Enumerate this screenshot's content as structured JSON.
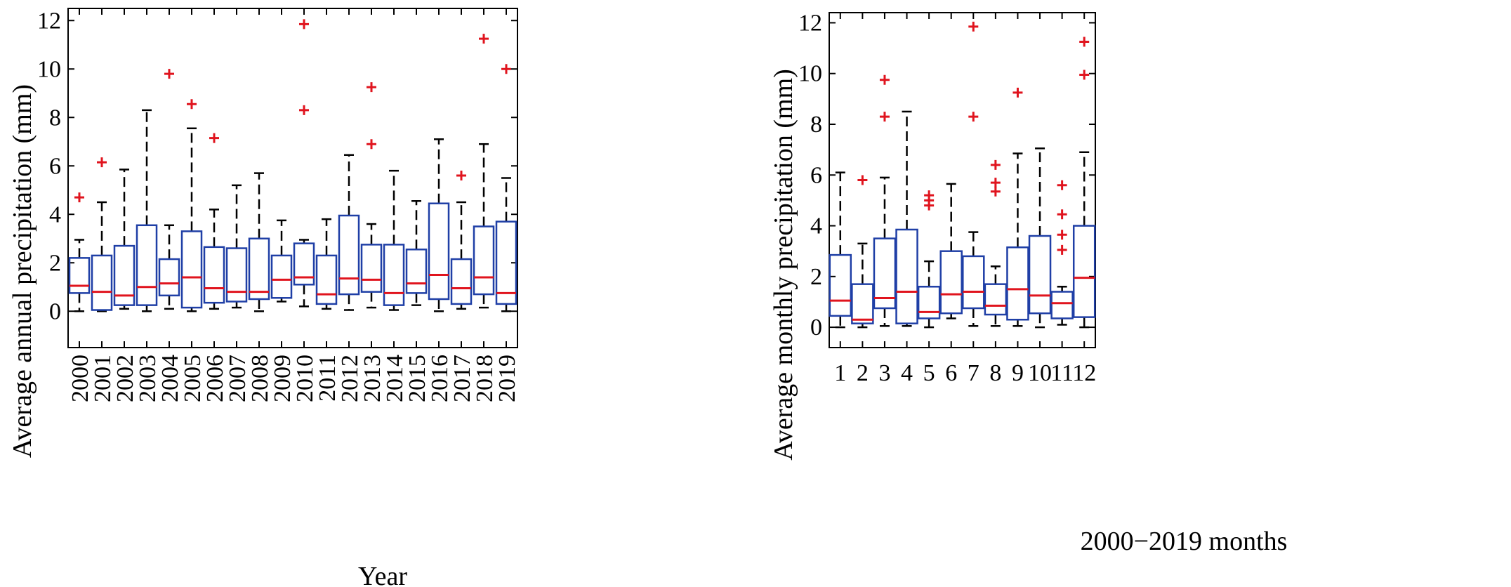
{
  "colors": {
    "box": "#1f3fa6",
    "median": "#e0141e",
    "outlier": "#e0141e",
    "axis": "#000000"
  },
  "chart_data": [
    {
      "type": "box",
      "title": "",
      "xlabel": "Year",
      "ylabel": "Average annual precipitation (mm)",
      "ylim": [
        -1.5,
        12.5
      ],
      "yticks": [
        0,
        2,
        4,
        6,
        8,
        10,
        12
      ],
      "xtick_rotation": "vertical",
      "grid": false,
      "categories": [
        "2000",
        "2001",
        "2002",
        "2003",
        "2004",
        "2005",
        "2006",
        "2007",
        "2008",
        "2009",
        "2010",
        "2011",
        "2012",
        "2013",
        "2014",
        "2015",
        "2016",
        "2017",
        "2018",
        "2019"
      ],
      "boxes": [
        {
          "min": 0.0,
          "q1": 0.75,
          "median": 1.05,
          "q3": 2.2,
          "max": 2.95,
          "outliers": [
            4.7
          ]
        },
        {
          "min": 0.0,
          "q1": 0.05,
          "median": 0.8,
          "q3": 2.3,
          "max": 4.5,
          "outliers": [
            6.15
          ]
        },
        {
          "min": 0.1,
          "q1": 0.25,
          "median": 0.65,
          "q3": 2.7,
          "max": 5.85,
          "outliers": []
        },
        {
          "min": 0.0,
          "q1": 0.25,
          "median": 1.0,
          "q3": 3.55,
          "max": 8.3,
          "outliers": []
        },
        {
          "min": 0.1,
          "q1": 0.65,
          "median": 1.15,
          "q3": 2.15,
          "max": 3.55,
          "outliers": [
            9.8
          ]
        },
        {
          "min": 0.0,
          "q1": 0.15,
          "median": 1.4,
          "q3": 3.3,
          "max": 7.55,
          "outliers": [
            8.55
          ]
        },
        {
          "min": 0.1,
          "q1": 0.35,
          "median": 0.95,
          "q3": 2.65,
          "max": 4.2,
          "outliers": [
            7.15
          ]
        },
        {
          "min": 0.15,
          "q1": 0.4,
          "median": 0.8,
          "q3": 2.6,
          "max": 5.2,
          "outliers": []
        },
        {
          "min": 0.0,
          "q1": 0.5,
          "median": 0.8,
          "q3": 3.0,
          "max": 5.7,
          "outliers": []
        },
        {
          "min": 0.4,
          "q1": 0.55,
          "median": 1.3,
          "q3": 2.3,
          "max": 3.75,
          "outliers": []
        },
        {
          "min": 0.2,
          "q1": 1.1,
          "median": 1.4,
          "q3": 2.8,
          "max": 2.95,
          "outliers": [
            8.3,
            11.85
          ]
        },
        {
          "min": 0.1,
          "q1": 0.3,
          "median": 0.7,
          "q3": 2.3,
          "max": 3.8,
          "outliers": []
        },
        {
          "min": 0.05,
          "q1": 0.7,
          "median": 1.35,
          "q3": 3.95,
          "max": 6.45,
          "outliers": []
        },
        {
          "min": 0.15,
          "q1": 0.8,
          "median": 1.3,
          "q3": 2.75,
          "max": 3.6,
          "outliers": [
            6.9,
            9.25
          ]
        },
        {
          "min": 0.05,
          "q1": 0.25,
          "median": 0.75,
          "q3": 2.75,
          "max": 5.8,
          "outliers": []
        },
        {
          "min": 0.25,
          "q1": 0.75,
          "median": 1.15,
          "q3": 2.55,
          "max": 4.55,
          "outliers": []
        },
        {
          "min": 0.0,
          "q1": 0.5,
          "median": 1.5,
          "q3": 4.45,
          "max": 7.1,
          "outliers": []
        },
        {
          "min": 0.1,
          "q1": 0.3,
          "median": 0.95,
          "q3": 2.15,
          "max": 4.5,
          "outliers": [
            5.6
          ]
        },
        {
          "min": 0.15,
          "q1": 0.7,
          "median": 1.4,
          "q3": 3.5,
          "max": 6.9,
          "outliers": [
            11.25
          ]
        },
        {
          "min": 0.0,
          "q1": 0.3,
          "median": 0.75,
          "q3": 3.7,
          "max": 5.5,
          "outliers": [
            10.0
          ]
        }
      ]
    },
    {
      "type": "box",
      "title": "",
      "xlabel": "2000−2019 months",
      "ylabel": "Average monthly precipitation (mm)",
      "ylim": [
        -0.8,
        12.4
      ],
      "yticks": [
        0,
        2,
        4,
        6,
        8,
        10,
        12
      ],
      "xtick_rotation": "horizontal",
      "grid": false,
      "categories": [
        "1",
        "2",
        "3",
        "4",
        "5",
        "6",
        "7",
        "8",
        "9",
        "10",
        "11",
        "12"
      ],
      "boxes": [
        {
          "min": 0.0,
          "q1": 0.45,
          "median": 1.05,
          "q3": 2.85,
          "max": 6.1,
          "outliers": []
        },
        {
          "min": 0.0,
          "q1": 0.15,
          "median": 0.3,
          "q3": 1.7,
          "max": 3.3,
          "outliers": [
            5.8
          ]
        },
        {
          "min": 0.05,
          "q1": 0.75,
          "median": 1.15,
          "q3": 3.5,
          "max": 5.9,
          "outliers": [
            8.3,
            9.75
          ]
        },
        {
          "min": 0.05,
          "q1": 0.15,
          "median": 1.4,
          "q3": 3.85,
          "max": 8.5,
          "outliers": []
        },
        {
          "min": 0.0,
          "q1": 0.35,
          "median": 0.6,
          "q3": 1.6,
          "max": 2.6,
          "outliers": [
            4.8,
            5.0,
            5.2
          ]
        },
        {
          "min": 0.35,
          "q1": 0.55,
          "median": 1.3,
          "q3": 3.0,
          "max": 5.65,
          "outliers": []
        },
        {
          "min": 0.05,
          "q1": 0.75,
          "median": 1.4,
          "q3": 2.8,
          "max": 3.75,
          "outliers": [
            8.3,
            11.85
          ]
        },
        {
          "min": 0.05,
          "q1": 0.5,
          "median": 0.85,
          "q3": 1.7,
          "max": 2.4,
          "outliers": [
            5.35,
            5.7,
            6.4
          ]
        },
        {
          "min": 0.05,
          "q1": 0.3,
          "median": 1.5,
          "q3": 3.15,
          "max": 6.85,
          "outliers": [
            9.25
          ]
        },
        {
          "min": 0.0,
          "q1": 0.55,
          "median": 1.25,
          "q3": 3.6,
          "max": 7.05,
          "outliers": []
        },
        {
          "min": 0.1,
          "q1": 0.35,
          "median": 0.95,
          "q3": 1.4,
          "max": 1.6,
          "outliers": [
            3.05,
            3.65,
            4.45,
            5.6
          ]
        },
        {
          "min": 0.0,
          "q1": 0.4,
          "median": 1.95,
          "q3": 4.0,
          "max": 6.9,
          "outliers": [
            9.95,
            11.25
          ]
        }
      ]
    }
  ]
}
